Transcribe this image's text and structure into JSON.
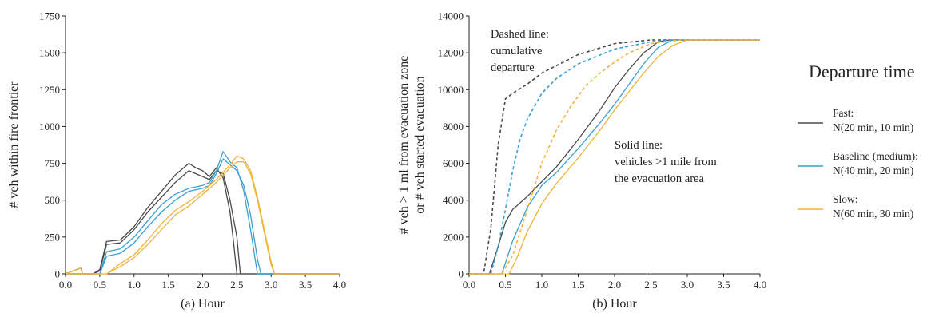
{
  "colors": {
    "fast": "#4a4a4a",
    "baseline": "#3a9fd0",
    "slow": "#f0b43a",
    "axis": "#222222"
  },
  "legend": {
    "title": "Departure time",
    "items": [
      {
        "key": "fast",
        "line1": "Fast:",
        "line2": "N(20 min, 10 min)"
      },
      {
        "key": "baseline",
        "line1": "Baseline (medium):",
        "line2": "N(40 min, 20 min)"
      },
      {
        "key": "slow",
        "line1": "Slow:",
        "line2": "N(60 min, 30 min)"
      }
    ]
  },
  "annotations": {
    "dashed": [
      "Dashed line:",
      "cumulative",
      "departure"
    ],
    "solid": [
      "Solid line:",
      "vehicles >1 mile from",
      "the evacuation area"
    ]
  },
  "chart_data": [
    {
      "type": "line",
      "panel": "a",
      "xlabel": "(a) Hour",
      "ylabel": "# veh within fire frontier",
      "xlim": [
        0,
        4
      ],
      "ylim": [
        0,
        1750
      ],
      "xticks": [
        "0.0",
        "0.5",
        "1.0",
        "1.5",
        "2.0",
        "2.5",
        "3.0",
        "3.5",
        "4.0"
      ],
      "yticks": [
        "0",
        "250",
        "500",
        "750",
        "1000",
        "1250",
        "1500",
        "1750"
      ],
      "series": [
        {
          "name": "Fast",
          "color_key": "fast",
          "style": "solid",
          "x": [
            0,
            0.22,
            0.25,
            0.4,
            0.5,
            0.6,
            0.8,
            1.0,
            1.2,
            1.4,
            1.6,
            1.8,
            1.9,
            2.0,
            2.1,
            2.2,
            2.3,
            2.4,
            2.45,
            2.5,
            2.6,
            4.0
          ],
          "y": [
            0,
            40,
            0,
            0,
            30,
            220,
            230,
            320,
            450,
            560,
            670,
            750,
            720,
            700,
            660,
            720,
            650,
            420,
            220,
            0,
            0,
            0
          ]
        },
        {
          "name": "Fast",
          "color_key": "fast",
          "style": "solid",
          "x": [
            0,
            0.4,
            0.5,
            0.6,
            0.8,
            1.0,
            1.2,
            1.4,
            1.6,
            1.8,
            1.9,
            2.0,
            2.1,
            2.2,
            2.3,
            2.4,
            2.5,
            2.55,
            2.6,
            4.0
          ],
          "y": [
            0,
            0,
            20,
            200,
            210,
            300,
            420,
            520,
            620,
            700,
            680,
            660,
            640,
            700,
            680,
            500,
            250,
            0,
            0,
            0
          ]
        },
        {
          "name": "Baseline (medium)",
          "color_key": "baseline",
          "style": "solid",
          "x": [
            0,
            0.5,
            0.6,
            0.8,
            1.0,
            1.2,
            1.4,
            1.6,
            1.8,
            2.0,
            2.1,
            2.2,
            2.3,
            2.4,
            2.5,
            2.6,
            2.7,
            2.8,
            4.0
          ],
          "y": [
            0,
            0,
            150,
            170,
            250,
            360,
            470,
            540,
            580,
            600,
            620,
            700,
            830,
            760,
            720,
            560,
            300,
            0,
            0
          ]
        },
        {
          "name": "Baseline (medium)",
          "color_key": "baseline",
          "style": "solid",
          "x": [
            0,
            0.5,
            0.6,
            0.8,
            1.0,
            1.2,
            1.4,
            1.6,
            1.8,
            2.0,
            2.1,
            2.2,
            2.3,
            2.4,
            2.5,
            2.6,
            2.7,
            2.8,
            2.85,
            4.0
          ],
          "y": [
            0,
            0,
            120,
            140,
            210,
            320,
            420,
            500,
            560,
            580,
            600,
            680,
            780,
            740,
            700,
            600,
            400,
            100,
            0,
            0
          ]
        },
        {
          "name": "Slow",
          "color_key": "slow",
          "style": "solid",
          "x": [
            0,
            0.22,
            0.25,
            0.6,
            0.8,
            1.0,
            1.2,
            1.4,
            1.6,
            1.8,
            2.0,
            2.2,
            2.4,
            2.5,
            2.6,
            2.7,
            2.8,
            2.9,
            3.0,
            3.05,
            4.0
          ],
          "y": [
            0,
            40,
            0,
            0,
            70,
            130,
            230,
            340,
            430,
            490,
            560,
            640,
            740,
            800,
            780,
            700,
            520,
            300,
            80,
            0,
            0
          ]
        },
        {
          "name": "Slow",
          "color_key": "slow",
          "style": "solid",
          "x": [
            0,
            0.6,
            0.8,
            1.0,
            1.2,
            1.4,
            1.6,
            1.8,
            2.0,
            2.2,
            2.4,
            2.5,
            2.6,
            2.7,
            2.8,
            2.9,
            3.0,
            3.05,
            4.0
          ],
          "y": [
            0,
            0,
            50,
            110,
            200,
            300,
            400,
            460,
            540,
            620,
            720,
            760,
            760,
            680,
            500,
            280,
            60,
            0,
            0
          ]
        }
      ]
    },
    {
      "type": "line",
      "panel": "b",
      "xlabel": "(b) Hour",
      "ylabel": [
        "# veh > 1 ml from evacuation zone",
        "or # veh started evacuation"
      ],
      "xlim": [
        0,
        4
      ],
      "ylim": [
        0,
        14000
      ],
      "xticks": [
        "0.0",
        "0.5",
        "1.0",
        "1.5",
        "2.0",
        "2.5",
        "3.0",
        "3.5",
        "4.0"
      ],
      "yticks": [
        "0",
        "2000",
        "4000",
        "6000",
        "8000",
        "10000",
        "12000",
        "14000"
      ],
      "series": [
        {
          "name": "Fast",
          "color_key": "fast",
          "style": "dashed",
          "x": [
            0,
            0.2,
            0.3,
            0.4,
            0.5,
            0.6,
            0.8,
            1.0,
            1.5,
            2.0,
            2.5,
            4.0
          ],
          "y": [
            0,
            0,
            2500,
            7000,
            9500,
            9800,
            10300,
            10900,
            11900,
            12500,
            12700,
            12700
          ]
        },
        {
          "name": "Fast",
          "color_key": "fast",
          "style": "solid",
          "x": [
            0,
            0.28,
            0.4,
            0.5,
            0.6,
            0.8,
            1.0,
            1.2,
            1.5,
            1.8,
            2.0,
            2.2,
            2.4,
            2.6,
            2.75,
            4.0
          ],
          "y": [
            0,
            0,
            1500,
            2800,
            3500,
            4200,
            5000,
            5800,
            7300,
            8900,
            10100,
            11100,
            12000,
            12600,
            12700,
            12700
          ]
        },
        {
          "name": "Baseline (medium)",
          "color_key": "baseline",
          "style": "dashed",
          "x": [
            0,
            0.3,
            0.4,
            0.5,
            0.6,
            0.7,
            0.8,
            1.0,
            1.2,
            1.5,
            2.0,
            2.5,
            2.8,
            4.0
          ],
          "y": [
            0,
            0,
            1500,
            3500,
            5600,
            7300,
            8400,
            9800,
            10600,
            11400,
            12200,
            12600,
            12700,
            12700
          ]
        },
        {
          "name": "Baseline (medium)",
          "color_key": "baseline",
          "style": "solid",
          "x": [
            0,
            0.45,
            0.6,
            0.8,
            1.0,
            1.2,
            1.5,
            1.8,
            2.0,
            2.2,
            2.4,
            2.6,
            2.8,
            2.9,
            4.0
          ],
          "y": [
            0,
            0,
            1800,
            3600,
            4800,
            5500,
            6800,
            8200,
            9200,
            10300,
            11400,
            12300,
            12700,
            12700,
            12700
          ]
        },
        {
          "name": "Slow",
          "color_key": "slow",
          "style": "dashed",
          "x": [
            0,
            0.45,
            0.6,
            0.8,
            1.0,
            1.2,
            1.4,
            1.6,
            1.8,
            2.0,
            2.2,
            2.5,
            2.9,
            4.0
          ],
          "y": [
            0,
            0,
            1000,
            3500,
            6000,
            7800,
            9100,
            10200,
            10900,
            11500,
            12000,
            12500,
            12700,
            12700
          ]
        },
        {
          "name": "Slow",
          "color_key": "slow",
          "style": "solid",
          "x": [
            0,
            0.55,
            0.65,
            0.8,
            1.0,
            1.2,
            1.5,
            1.8,
            2.0,
            2.2,
            2.4,
            2.6,
            2.8,
            3.0,
            3.1,
            4.0
          ],
          "y": [
            0,
            0,
            800,
            2300,
            3800,
            4900,
            6300,
            7800,
            8900,
            9900,
            10900,
            11800,
            12400,
            12700,
            12700,
            12700
          ]
        }
      ]
    }
  ]
}
